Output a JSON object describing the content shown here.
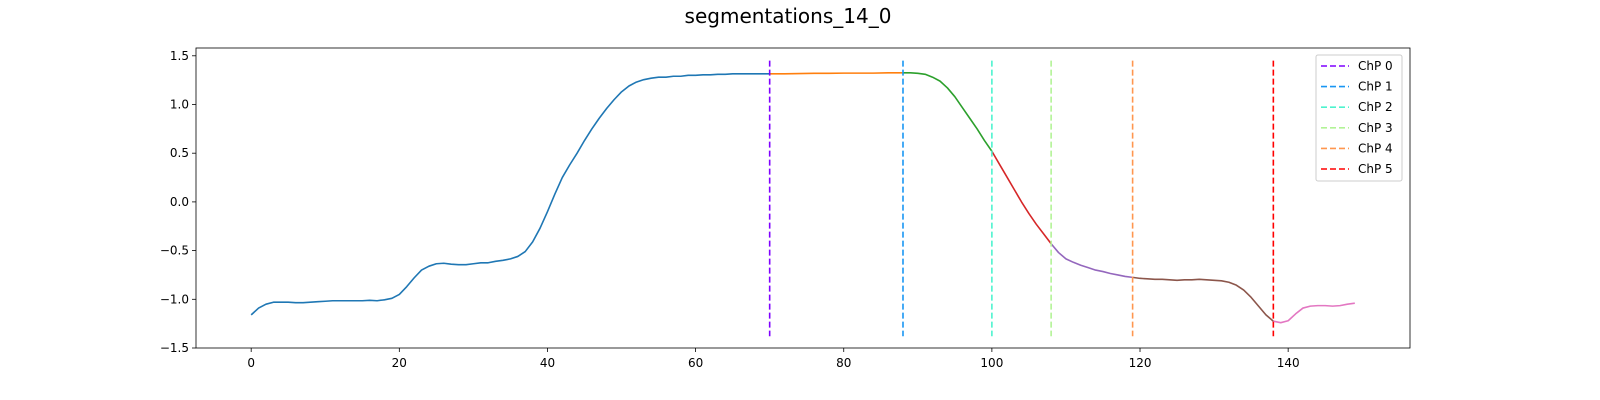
{
  "chart_data": {
    "type": "line",
    "title": "segmentations_14_0",
    "xlabel": "",
    "ylabel": "",
    "xlim": [
      -7.45,
      156.45
    ],
    "ylim": [
      -1.5,
      1.58
    ],
    "x_ticks": [
      0,
      20,
      40,
      60,
      80,
      100,
      120,
      140
    ],
    "y_ticks": [
      -1.5,
      -1.0,
      -0.5,
      0.0,
      0.5,
      1.0,
      1.5
    ],
    "x_tick_labels": [
      "0",
      "20",
      "40",
      "60",
      "80",
      "100",
      "120",
      "140"
    ],
    "y_tick_labels": [
      "−1.5",
      "−1.0",
      "−0.5",
      "0.0",
      "0.5",
      "1.0",
      "1.5"
    ],
    "grid": false,
    "legend_position": "top-right",
    "changepoints": [
      {
        "label": "ChP 0",
        "x": 70,
        "color": "#7f00ff"
      },
      {
        "label": "ChP 1",
        "x": 88,
        "color": "#1996f3"
      },
      {
        "label": "ChP 2",
        "x": 100,
        "color": "#4df3ce"
      },
      {
        "label": "ChP 3",
        "x": 108,
        "color": "#b2f396"
      },
      {
        "label": "ChP 4",
        "x": 119,
        "color": "#ff964f"
      },
      {
        "label": "ChP 5",
        "x": 138,
        "color": "#ff0000"
      }
    ],
    "changepoint_line_range": [
      -1.38,
      1.45
    ],
    "segments": [
      {
        "color": "#1f77b4",
        "points": [
          [
            0,
            -1.16
          ],
          [
            1,
            -1.09
          ],
          [
            2,
            -1.05
          ],
          [
            3,
            -1.03
          ],
          [
            4,
            -1.03
          ],
          [
            5,
            -1.03
          ],
          [
            6,
            -1.035
          ],
          [
            7,
            -1.035
          ],
          [
            8,
            -1.03
          ],
          [
            9,
            -1.025
          ],
          [
            10,
            -1.02
          ],
          [
            11,
            -1.015
          ],
          [
            12,
            -1.015
          ],
          [
            13,
            -1.015
          ],
          [
            14,
            -1.015
          ],
          [
            15,
            -1.015
          ],
          [
            16,
            -1.01
          ],
          [
            17,
            -1.015
          ],
          [
            18,
            -1.005
          ],
          [
            19,
            -0.99
          ],
          [
            20,
            -0.95
          ],
          [
            21,
            -0.87
          ],
          [
            22,
            -0.78
          ],
          [
            23,
            -0.7
          ],
          [
            24,
            -0.66
          ],
          [
            25,
            -0.635
          ],
          [
            26,
            -0.63
          ],
          [
            27,
            -0.64
          ],
          [
            28,
            -0.645
          ],
          [
            29,
            -0.645
          ],
          [
            30,
            -0.635
          ],
          [
            31,
            -0.625
          ],
          [
            32,
            -0.625
          ],
          [
            33,
            -0.61
          ],
          [
            34,
            -0.6
          ],
          [
            35,
            -0.585
          ],
          [
            36,
            -0.56
          ],
          [
            37,
            -0.51
          ],
          [
            38,
            -0.41
          ],
          [
            39,
            -0.27
          ],
          [
            40,
            -0.1
          ],
          [
            41,
            0.08
          ],
          [
            42,
            0.25
          ],
          [
            43,
            0.38
          ],
          [
            44,
            0.5
          ],
          [
            45,
            0.63
          ],
          [
            46,
            0.75
          ],
          [
            47,
            0.86
          ],
          [
            48,
            0.96
          ],
          [
            49,
            1.05
          ],
          [
            50,
            1.13
          ],
          [
            51,
            1.19
          ],
          [
            52,
            1.23
          ],
          [
            53,
            1.255
          ],
          [
            54,
            1.27
          ],
          [
            55,
            1.28
          ],
          [
            56,
            1.28
          ],
          [
            57,
            1.29
          ],
          [
            58,
            1.29
          ],
          [
            59,
            1.3
          ],
          [
            60,
            1.3
          ],
          [
            61,
            1.305
          ],
          [
            62,
            1.305
          ],
          [
            63,
            1.31
          ],
          [
            64,
            1.31
          ],
          [
            65,
            1.315
          ],
          [
            66,
            1.315
          ],
          [
            67,
            1.315
          ],
          [
            68,
            1.315
          ],
          [
            69,
            1.315
          ],
          [
            70,
            1.315
          ]
        ]
      },
      {
        "color": "#ff7f0e",
        "points": [
          [
            70,
            1.315
          ],
          [
            72,
            1.315
          ],
          [
            74,
            1.318
          ],
          [
            76,
            1.32
          ],
          [
            78,
            1.32
          ],
          [
            80,
            1.322
          ],
          [
            82,
            1.322
          ],
          [
            84,
            1.322
          ],
          [
            86,
            1.325
          ],
          [
            88,
            1.325
          ]
        ]
      },
      {
        "color": "#2ca02c",
        "points": [
          [
            88,
            1.325
          ],
          [
            89,
            1.325
          ],
          [
            90,
            1.32
          ],
          [
            91,
            1.31
          ],
          [
            92,
            1.28
          ],
          [
            93,
            1.24
          ],
          [
            94,
            1.17
          ],
          [
            95,
            1.08
          ],
          [
            96,
            0.97
          ],
          [
            97,
            0.86
          ],
          [
            98,
            0.75
          ],
          [
            99,
            0.63
          ],
          [
            100,
            0.52
          ]
        ]
      },
      {
        "color": "#d62728",
        "points": [
          [
            100,
            0.52
          ],
          [
            101,
            0.39
          ],
          [
            102,
            0.26
          ],
          [
            103,
            0.13
          ],
          [
            104,
            0.0
          ],
          [
            105,
            -0.12
          ],
          [
            106,
            -0.23
          ],
          [
            107,
            -0.33
          ],
          [
            108,
            -0.43
          ]
        ]
      },
      {
        "color": "#9467bd",
        "points": [
          [
            108,
            -0.43
          ],
          [
            109,
            -0.52
          ],
          [
            110,
            -0.585
          ],
          [
            111,
            -0.62
          ],
          [
            112,
            -0.65
          ],
          [
            113,
            -0.675
          ],
          [
            114,
            -0.7
          ],
          [
            115,
            -0.715
          ],
          [
            116,
            -0.735
          ],
          [
            117,
            -0.75
          ],
          [
            118,
            -0.765
          ],
          [
            119,
            -0.775
          ]
        ]
      },
      {
        "color": "#8c564b",
        "points": [
          [
            119,
            -0.775
          ],
          [
            120,
            -0.785
          ],
          [
            121,
            -0.79
          ],
          [
            122,
            -0.795
          ],
          [
            123,
            -0.795
          ],
          [
            124,
            -0.8
          ],
          [
            125,
            -0.805
          ],
          [
            126,
            -0.8
          ],
          [
            127,
            -0.8
          ],
          [
            128,
            -0.795
          ],
          [
            129,
            -0.8
          ],
          [
            130,
            -0.805
          ],
          [
            131,
            -0.81
          ],
          [
            132,
            -0.825
          ],
          [
            133,
            -0.855
          ],
          [
            134,
            -0.905
          ],
          [
            135,
            -0.98
          ],
          [
            136,
            -1.07
          ],
          [
            137,
            -1.16
          ],
          [
            138,
            -1.225
          ]
        ]
      },
      {
        "color": "#e377c2",
        "points": [
          [
            138,
            -1.225
          ],
          [
            139,
            -1.24
          ],
          [
            140,
            -1.22
          ],
          [
            141,
            -1.15
          ],
          [
            142,
            -1.09
          ],
          [
            143,
            -1.07
          ],
          [
            144,
            -1.065
          ],
          [
            145,
            -1.065
          ],
          [
            146,
            -1.07
          ],
          [
            147,
            -1.065
          ],
          [
            148,
            -1.05
          ],
          [
            149,
            -1.04
          ]
        ]
      }
    ]
  }
}
